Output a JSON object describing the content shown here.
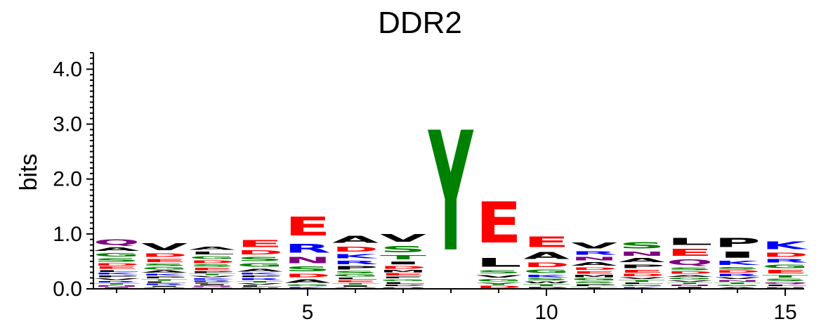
{
  "chart_data": {
    "type": "sequence-logo",
    "title": "DDR2",
    "ylabel": "bits",
    "xlabel": "",
    "ylim": [
      0,
      4.3
    ],
    "yticks": [
      "0.0",
      "1.0",
      "2.0",
      "3.0",
      "4.0"
    ],
    "xticks": [
      {
        "pos": 5,
        "label": "5"
      },
      {
        "pos": 10,
        "label": "10"
      },
      {
        "pos": 15,
        "label": "15"
      }
    ],
    "colors": {
      "acidic": "#ff0000",
      "basic": "#0000ff",
      "hydrophobic": "#000000",
      "polar": "#008000",
      "amide": "#800080"
    },
    "positions": [
      {
        "pos": 1,
        "letters": [
          {
            "aa": "Q",
            "bits": 0.16
          },
          {
            "aa": "S",
            "bits": 0.1
          },
          {
            "aa": "G",
            "bits": 0.1
          },
          {
            "aa": "V",
            "bits": 0.05
          },
          {
            "aa": "A",
            "bits": 0.1
          },
          {
            "aa": "E",
            "bits": 0.06
          },
          {
            "aa": "D",
            "bits": 0.06
          },
          {
            "aa": "P",
            "bits": 0.05
          },
          {
            "aa": "K",
            "bits": 0.05
          },
          {
            "aa": "L",
            "bits": 0.05
          },
          {
            "aa": "N",
            "bits": 0.04
          },
          {
            "aa": "T",
            "bits": 0.04
          },
          {
            "aa": "R",
            "bits": 0.04
          },
          {
            "aa": "I",
            "bits": 0.03
          }
        ]
      },
      {
        "pos": 2,
        "letters": [
          {
            "aa": "V",
            "bits": 0.2
          },
          {
            "aa": "D",
            "bits": 0.1
          },
          {
            "aa": "E",
            "bits": 0.09
          },
          {
            "aa": "S",
            "bits": 0.07
          },
          {
            "aa": "A",
            "bits": 0.06
          },
          {
            "aa": "G",
            "bits": 0.06
          },
          {
            "aa": "P",
            "bits": 0.05
          },
          {
            "aa": "K",
            "bits": 0.05
          },
          {
            "aa": "R",
            "bits": 0.04
          },
          {
            "aa": "L",
            "bits": 0.04
          },
          {
            "aa": "T",
            "bits": 0.04
          },
          {
            "aa": "Q",
            "bits": 0.03
          },
          {
            "aa": "I",
            "bits": 0.03
          }
        ]
      },
      {
        "pos": 3,
        "letters": [
          {
            "aa": "A",
            "bits": 0.09
          },
          {
            "aa": "D",
            "bits": 0.08
          },
          {
            "aa": "E",
            "bits": 0.06
          },
          {
            "aa": "S",
            "bits": 0.06
          },
          {
            "aa": "G",
            "bits": 0.08
          },
          {
            "aa": "P",
            "bits": 0.05
          },
          {
            "aa": "L",
            "bits": 0.08
          },
          {
            "aa": "R",
            "bits": 0.04
          },
          {
            "aa": "K",
            "bits": 0.04
          },
          {
            "aa": "V",
            "bits": 0.04
          },
          {
            "aa": "Q",
            "bits": 0.03
          },
          {
            "aa": "T",
            "bits": 0.04
          },
          {
            "aa": "N",
            "bits": 0.03
          },
          {
            "aa": "I",
            "bits": 0.03
          },
          {
            "aa": "F",
            "bits": 0.03
          }
        ]
      },
      {
        "pos": 4,
        "letters": [
          {
            "aa": "E",
            "bits": 0.2
          },
          {
            "aa": "S",
            "bits": 0.12
          },
          {
            "aa": "G",
            "bits": 0.1
          },
          {
            "aa": "A",
            "bits": 0.08
          },
          {
            "aa": "D",
            "bits": 0.12
          },
          {
            "aa": "R",
            "bits": 0.05
          },
          {
            "aa": "P",
            "bits": 0.05
          },
          {
            "aa": "K",
            "bits": 0.05
          },
          {
            "aa": "L",
            "bits": 0.04
          },
          {
            "aa": "V",
            "bits": 0.04
          },
          {
            "aa": "T",
            "bits": 0.04
          },
          {
            "aa": "N",
            "bits": 0.03
          }
        ]
      },
      {
        "pos": 5,
        "letters": [
          {
            "aa": "E",
            "bits": 0.55
          },
          {
            "aa": "R",
            "bits": 0.25
          },
          {
            "aa": "N",
            "bits": 0.18
          },
          {
            "aa": "S",
            "bits": 0.14
          },
          {
            "aa": "A",
            "bits": 0.1
          },
          {
            "aa": "D",
            "bits": 0.1
          },
          {
            "aa": "G",
            "bits": 0.05
          },
          {
            "aa": "K",
            "bits": 0.04
          }
        ]
      },
      {
        "pos": 6,
        "letters": [
          {
            "aa": "A",
            "bits": 0.2
          },
          {
            "aa": "D",
            "bits": 0.15
          },
          {
            "aa": "K",
            "bits": 0.12
          },
          {
            "aa": "P",
            "bits": 0.1
          },
          {
            "aa": "R",
            "bits": 0.1
          },
          {
            "aa": "G",
            "bits": 0.06
          },
          {
            "aa": "S",
            "bits": 0.06
          },
          {
            "aa": "E",
            "bits": 0.05
          },
          {
            "aa": "L",
            "bits": 0.05
          },
          {
            "aa": "I",
            "bits": 0.04
          },
          {
            "aa": "T",
            "bits": 0.04
          },
          {
            "aa": "Q",
            "bits": 0.03
          }
        ]
      },
      {
        "pos": 7,
        "letters": [
          {
            "aa": "V",
            "bits": 0.22
          },
          {
            "aa": "S",
            "bits": 0.18
          },
          {
            "aa": "T",
            "bits": 0.12
          },
          {
            "aa": "D",
            "bits": 0.08
          },
          {
            "aa": "I",
            "bits": 0.08
          },
          {
            "aa": "E",
            "bits": 0.06
          },
          {
            "aa": "M",
            "bits": 0.06
          },
          {
            "aa": "L",
            "bits": 0.05
          },
          {
            "aa": "G",
            "bits": 0.05
          },
          {
            "aa": "F",
            "bits": 0.05
          },
          {
            "aa": "Q",
            "bits": 0.04
          },
          {
            "aa": "P",
            "bits": 0.04
          }
        ]
      },
      {
        "pos": 8,
        "letters": [
          {
            "aa": "Y",
            "bits": 3.5
          }
        ]
      },
      {
        "pos": 9,
        "letters": [
          {
            "aa": "E",
            "bits": 1.2
          },
          {
            "aa": "L",
            "bits": 0.25
          },
          {
            "aa": "S",
            "bits": 0.09
          },
          {
            "aa": "G",
            "bits": 0.07
          },
          {
            "aa": "V",
            "bits": 0.07
          },
          {
            "aa": "D",
            "bits": 0.06
          },
          {
            "aa": "Y",
            "bits": 0.06
          }
        ]
      },
      {
        "pos": 10,
        "letters": [
          {
            "aa": "E",
            "bits": 0.3
          },
          {
            "aa": "A",
            "bits": 0.2
          },
          {
            "aa": "D",
            "bits": 0.13
          },
          {
            "aa": "G",
            "bits": 0.1
          },
          {
            "aa": "K",
            "bits": 0.07
          },
          {
            "aa": "S",
            "bits": 0.06
          },
          {
            "aa": "T",
            "bits": 0.05
          },
          {
            "aa": "W",
            "bits": 0.05
          },
          {
            "aa": "P",
            "bits": 0.04
          }
        ]
      },
      {
        "pos": 11,
        "letters": [
          {
            "aa": "V",
            "bits": 0.17
          },
          {
            "aa": "A",
            "bits": 0.1
          },
          {
            "aa": "N",
            "bits": 0.1
          },
          {
            "aa": "R",
            "bits": 0.1
          },
          {
            "aa": "E",
            "bits": 0.07
          },
          {
            "aa": "D",
            "bits": 0.07
          },
          {
            "aa": "G",
            "bits": 0.06
          },
          {
            "aa": "M",
            "bits": 0.06
          },
          {
            "aa": "P",
            "bits": 0.05
          },
          {
            "aa": "S",
            "bits": 0.05
          },
          {
            "aa": "T",
            "bits": 0.04
          }
        ]
      },
      {
        "pos": 12,
        "letters": [
          {
            "aa": "S",
            "bits": 0.18
          },
          {
            "aa": "A",
            "bits": 0.12
          },
          {
            "aa": "N",
            "bits": 0.12
          },
          {
            "aa": "P",
            "bits": 0.1
          },
          {
            "aa": "E",
            "bits": 0.08
          },
          {
            "aa": "D",
            "bits": 0.06
          },
          {
            "aa": "T",
            "bits": 0.05
          },
          {
            "aa": "V",
            "bits": 0.05
          },
          {
            "aa": "K",
            "bits": 0.04
          },
          {
            "aa": "G",
            "bits": 0.04
          },
          {
            "aa": "L",
            "bits": 0.04
          }
        ]
      },
      {
        "pos": 13,
        "letters": [
          {
            "aa": "E",
            "bits": 0.2
          },
          {
            "aa": "L",
            "bits": 0.2
          },
          {
            "aa": "Q",
            "bits": 0.16
          },
          {
            "aa": "S",
            "bits": 0.08
          },
          {
            "aa": "D",
            "bits": 0.06
          },
          {
            "aa": "G",
            "bits": 0.05
          },
          {
            "aa": "A",
            "bits": 0.05
          },
          {
            "aa": "I",
            "bits": 0.04
          },
          {
            "aa": "N",
            "bits": 0.04
          },
          {
            "aa": "T",
            "bits": 0.04
          },
          {
            "aa": "V",
            "bits": 0.04
          }
        ]
      },
      {
        "pos": 14,
        "letters": [
          {
            "aa": "P",
            "bits": 0.26
          },
          {
            "aa": "I",
            "bits": 0.18
          },
          {
            "aa": "K",
            "bits": 0.12
          },
          {
            "aa": "S",
            "bits": 0.07
          },
          {
            "aa": "R",
            "bits": 0.06
          },
          {
            "aa": "D",
            "bits": 0.06
          },
          {
            "aa": "N",
            "bits": 0.05
          },
          {
            "aa": "V",
            "bits": 0.05
          },
          {
            "aa": "A",
            "bits": 0.04
          },
          {
            "aa": "G",
            "bits": 0.04
          },
          {
            "aa": "T",
            "bits": 0.04
          }
        ]
      },
      {
        "pos": 15,
        "letters": [
          {
            "aa": "K",
            "bits": 0.22
          },
          {
            "aa": "D",
            "bits": 0.12
          },
          {
            "aa": "E",
            "bits": 0.1
          },
          {
            "aa": "G",
            "bits": 0.1
          },
          {
            "aa": "T",
            "bits": 0.07
          },
          {
            "aa": "R",
            "bits": 0.1
          },
          {
            "aa": "S",
            "bits": 0.06
          },
          {
            "aa": "Q",
            "bits": 0.05
          },
          {
            "aa": "N",
            "bits": 0.04
          },
          {
            "aa": "L",
            "bits": 0.04
          }
        ]
      }
    ]
  }
}
